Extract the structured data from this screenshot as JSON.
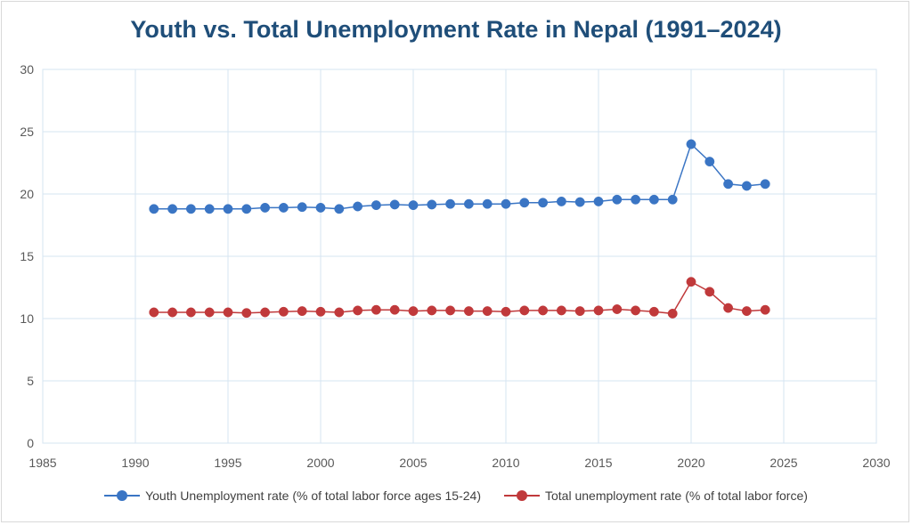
{
  "chart_data": {
    "type": "line",
    "title": "Youth vs. Total Unemployment Rate in Nepal (1991–2024)",
    "xlabel": "",
    "ylabel": "",
    "xlim": [
      1985,
      2030
    ],
    "ylim": [
      0,
      30
    ],
    "x_ticks": [
      "1985",
      "1990",
      "1995",
      "2000",
      "2005",
      "2010",
      "2015",
      "2020",
      "2025",
      "2030"
    ],
    "y_ticks": [
      "0",
      "5",
      "10",
      "15",
      "20",
      "25",
      "30"
    ],
    "grid": true,
    "legend_position": "bottom",
    "x": [
      1991,
      1992,
      1993,
      1994,
      1995,
      1996,
      1997,
      1998,
      1999,
      2000,
      2001,
      2002,
      2003,
      2004,
      2005,
      2006,
      2007,
      2008,
      2009,
      2010,
      2011,
      2012,
      2013,
      2014,
      2015,
      2016,
      2017,
      2018,
      2019,
      2020,
      2021,
      2022,
      2023,
      2024
    ],
    "series": [
      {
        "name": "Youth Unemployment rate (% of total labor force ages 15-24)",
        "color": "#3a75c4",
        "values": [
          18.8,
          18.8,
          18.8,
          18.8,
          18.8,
          18.8,
          18.9,
          18.9,
          18.95,
          18.9,
          18.8,
          19.0,
          19.1,
          19.15,
          19.1,
          19.15,
          19.2,
          19.2,
          19.2,
          19.2,
          19.3,
          19.3,
          19.4,
          19.35,
          19.4,
          19.55,
          19.55,
          19.55,
          19.55,
          24.0,
          22.6,
          20.8,
          20.65,
          20.8
        ]
      },
      {
        "name": "Total unemployment rate (% of total labor force)",
        "color": "#c0393b",
        "values": [
          10.5,
          10.5,
          10.5,
          10.5,
          10.5,
          10.45,
          10.5,
          10.55,
          10.6,
          10.55,
          10.5,
          10.65,
          10.7,
          10.7,
          10.6,
          10.65,
          10.65,
          10.6,
          10.6,
          10.55,
          10.65,
          10.65,
          10.65,
          10.6,
          10.65,
          10.75,
          10.65,
          10.55,
          10.4,
          12.95,
          12.15,
          10.85,
          10.6,
          10.7
        ]
      }
    ]
  }
}
